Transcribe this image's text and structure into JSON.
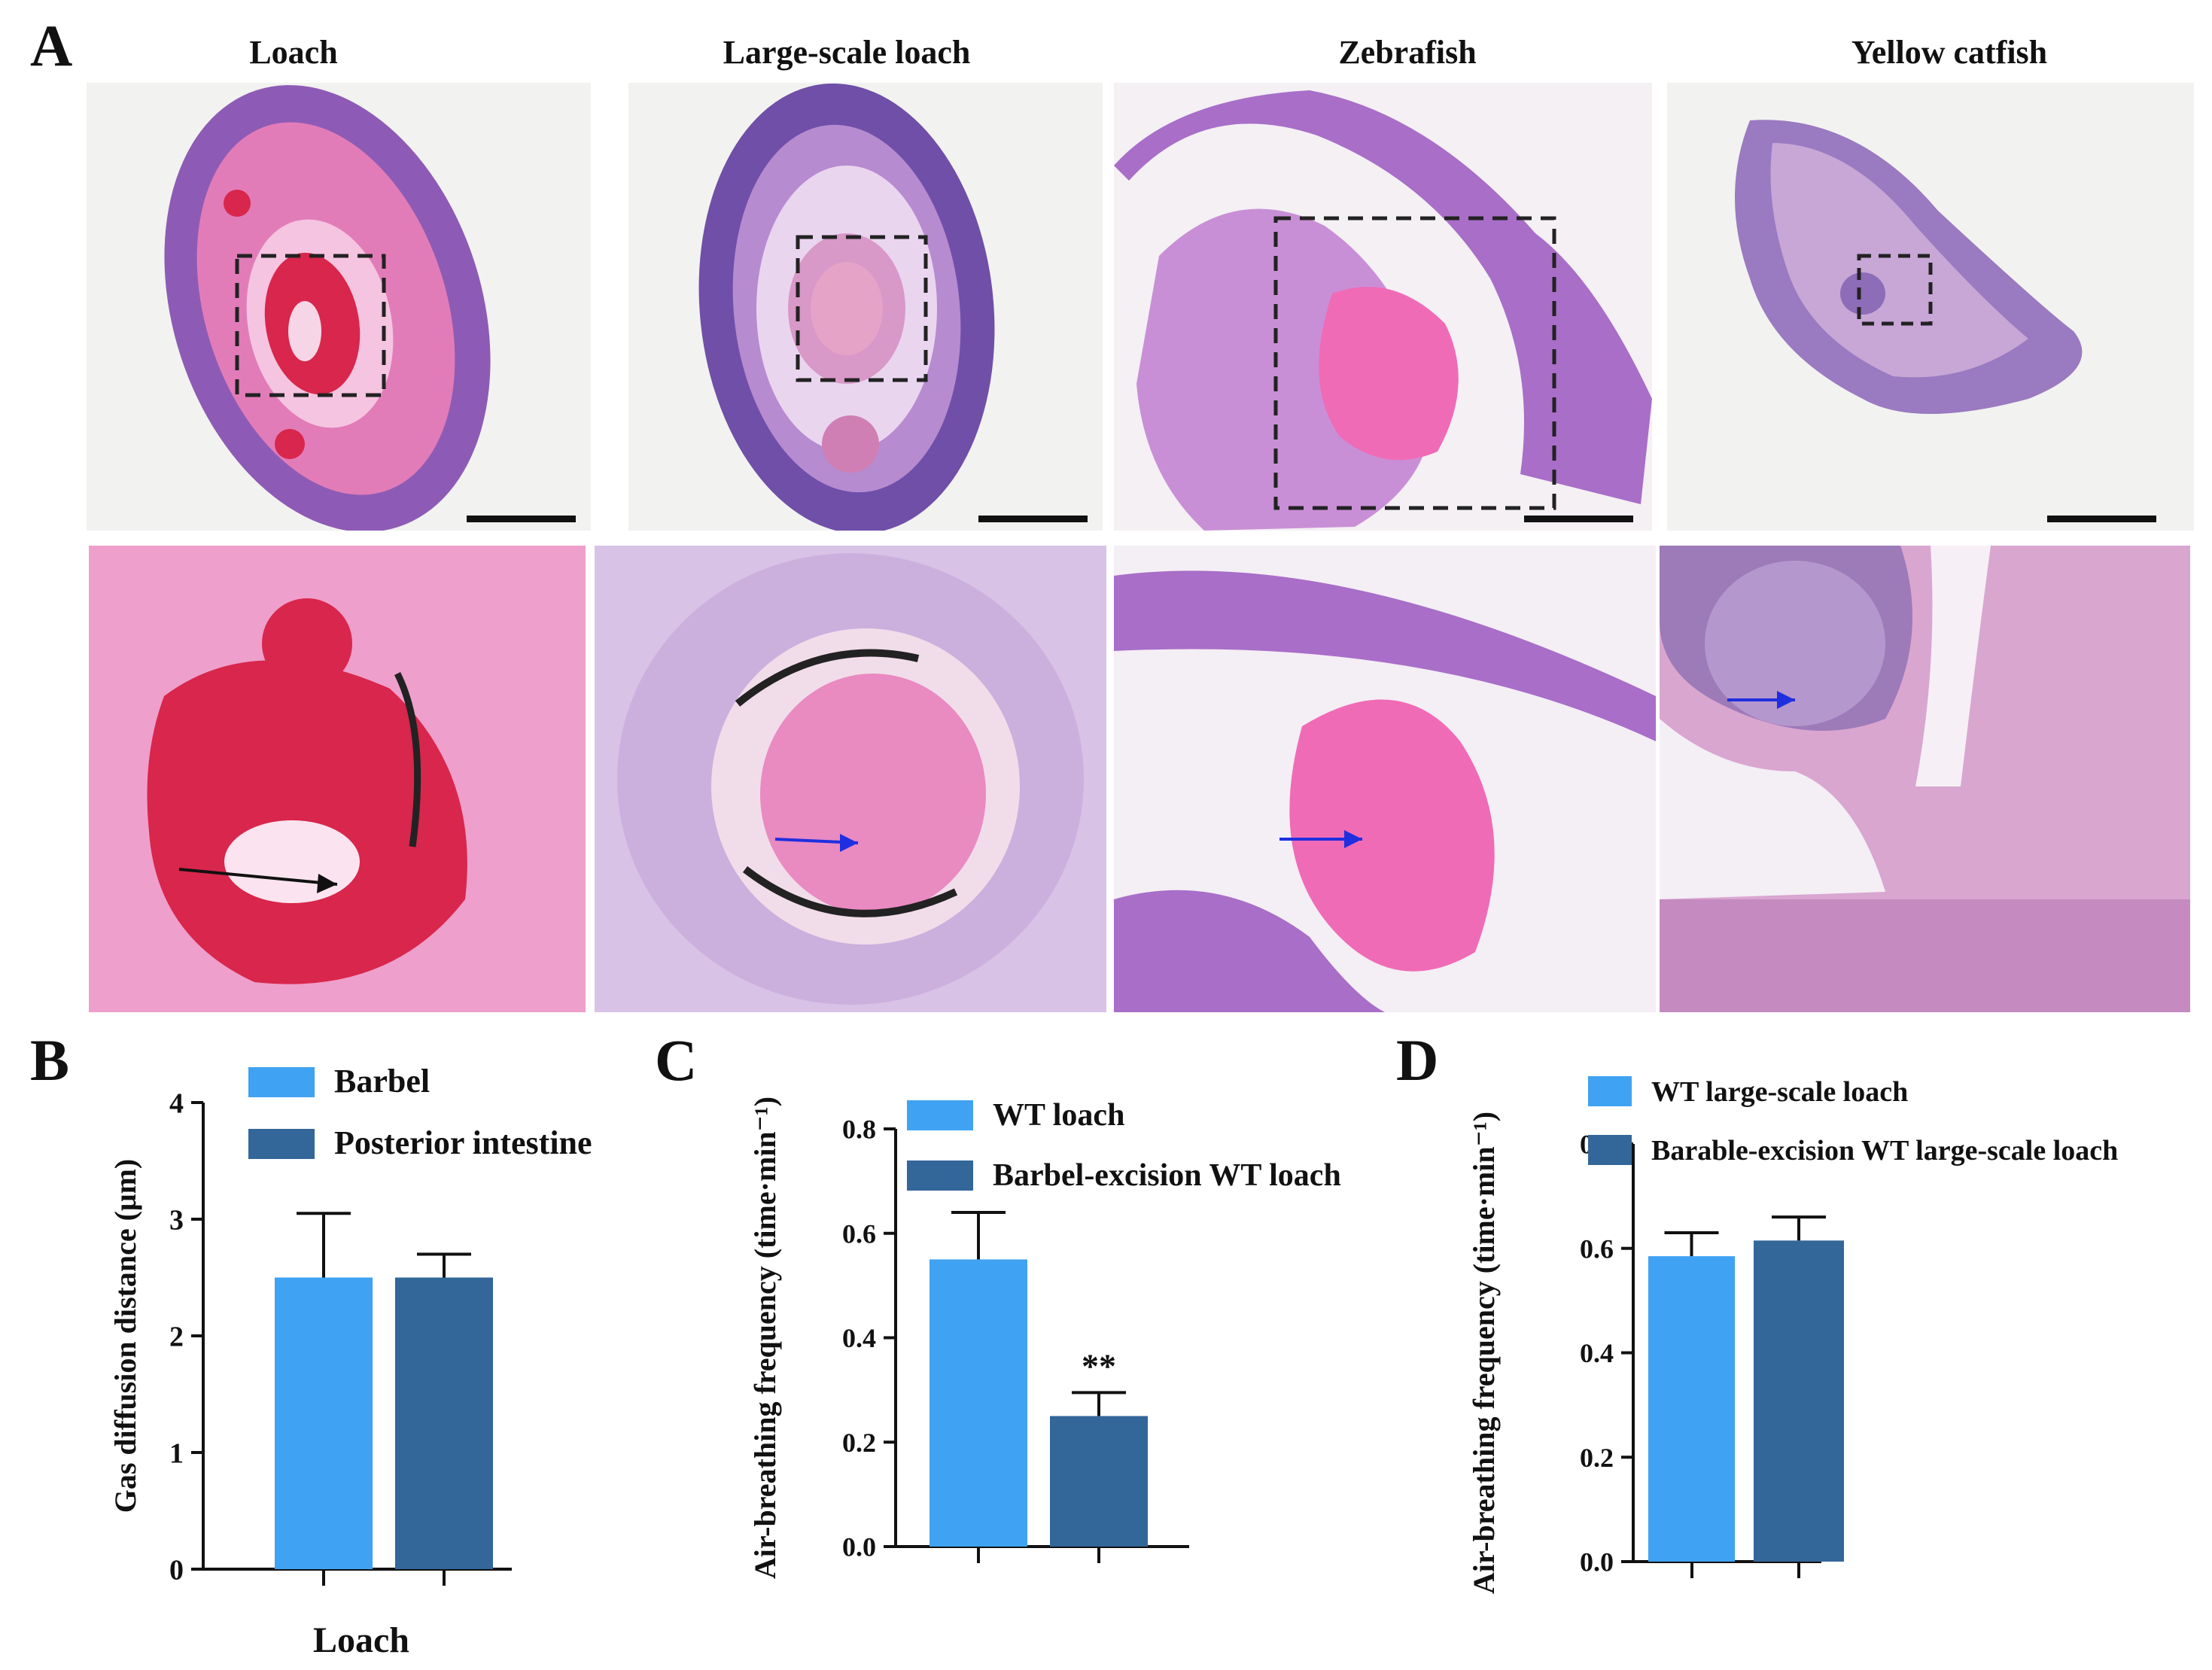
{
  "panels": {
    "A": "A",
    "B": "B",
    "C": "C",
    "D": "D"
  },
  "histology": {
    "species": [
      "Loach",
      "Large-scale loach",
      "Zebrafish",
      "Yellow catfish"
    ],
    "colors": {
      "background": "#f2f2f0",
      "tissue_purple": "#8d5bb5",
      "tissue_pink": "#e27cb8",
      "blood_red": "#d8264c",
      "vessel_pink": "#f06bb6",
      "arrow_black": "#111111",
      "arrow_blue": "#1f2fe0"
    }
  },
  "colors": {
    "series_light": "#3fa2f2",
    "series_dark": "#336699"
  },
  "chart_data": [
    {
      "panel": "B",
      "type": "bar",
      "categories": [
        "Loach"
      ],
      "xlabel": "Loach",
      "ylabel": "Gas diffusion distance (μm)",
      "ylim": [
        0,
        4
      ],
      "yticks": [
        "0",
        "1",
        "2",
        "3",
        "4"
      ],
      "series": [
        {
          "name": "Barbel",
          "values": [
            2.5
          ],
          "error": [
            0.55
          ],
          "color": "#3fa2f2"
        },
        {
          "name": "Posterior intestine",
          "values": [
            2.5
          ],
          "error": [
            0.2
          ],
          "color": "#336699"
        }
      ],
      "annotations": [],
      "legend": "top-left"
    },
    {
      "panel": "C",
      "type": "bar",
      "categories": [
        ""
      ],
      "xlabel": "",
      "ylabel": "Air-breathing frequency (time·min⁻¹)",
      "ylim": [
        0,
        0.8
      ],
      "yticks": [
        "0.0",
        "0.2",
        "0.4",
        "0.6",
        "0.8"
      ],
      "series": [
        {
          "name": "WT  loach",
          "values": [
            0.55
          ],
          "error": [
            0.09
          ],
          "color": "#3fa2f2"
        },
        {
          "name": "Barbel-excision WT loach",
          "values": [
            0.25
          ],
          "error": [
            0.045
          ],
          "color": "#336699"
        }
      ],
      "annotations": [
        "**"
      ],
      "legend": "top-left"
    },
    {
      "panel": "D",
      "type": "bar",
      "categories": [
        ""
      ],
      "xlabel": "",
      "ylabel": "Air-breathing frequency (time·min⁻¹)",
      "ylim": [
        0,
        0.8
      ],
      "yticks": [
        "0.0",
        "0.2",
        "0.4",
        "0.6",
        "0.8"
      ],
      "series": [
        {
          "name": "WT large-scale loach",
          "values": [
            0.585
          ],
          "error": [
            0.045
          ],
          "color": "#3fa2f2"
        },
        {
          "name": "Barable-excision WT large-scale loach",
          "values": [
            0.615
          ],
          "error": [
            0.045
          ],
          "color": "#336699"
        }
      ],
      "annotations": [],
      "legend": "top-left"
    }
  ]
}
